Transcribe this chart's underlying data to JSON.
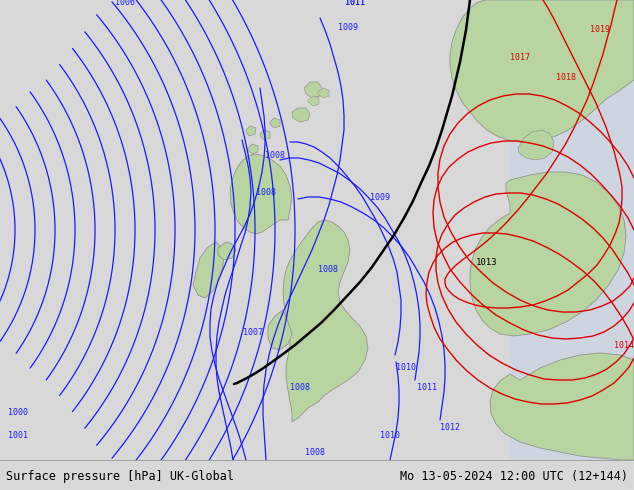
{
  "title_left": "Surface pressure [hPa] UK-Global",
  "title_right": "Mo 13-05-2024 12:00 UTC (12+144)",
  "title_fontsize": 8.5,
  "sea_color": "#cdd5e0",
  "land_color": "#b8d4a0",
  "blue_color": "#1a1aff",
  "red_color": "#dd0000",
  "black_color": "#000000",
  "footer_bg": "#d8d8d8",
  "footer_line_color": "#888888"
}
